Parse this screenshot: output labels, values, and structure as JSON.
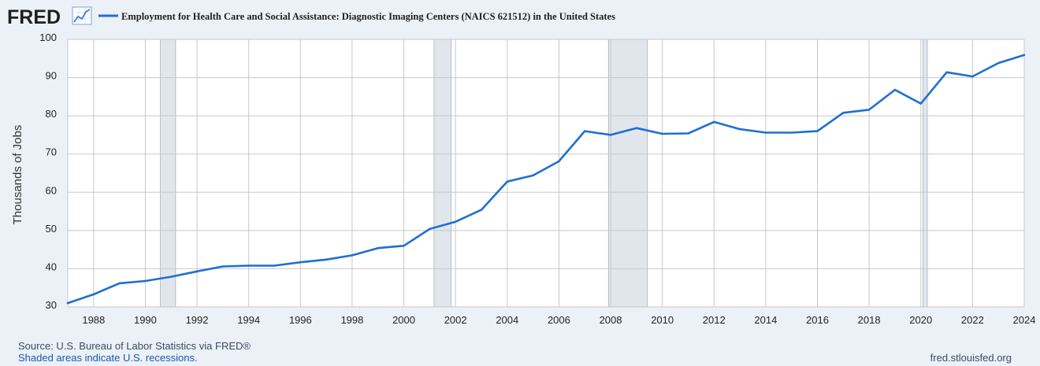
{
  "logo": {
    "text": "FRED",
    "icon": "fred-graph-icon"
  },
  "colors": {
    "background": "#ecf1f8",
    "plot_bg": "#ffffff",
    "grid": "#c8c8c8",
    "line": "#1f6fd1",
    "recession": "#e1e6ec",
    "recession_edge": "#b8bec6",
    "footer_source": "#3a4b63",
    "footer_link": "#1a56b0"
  },
  "footer": {
    "source": "Source: U.S. Bureau of Labor Statistics via FRED®",
    "shaded_note": "Shaded areas indicate U.S. recessions.",
    "site": "fred.stlouisfed.org"
  },
  "chart_data": {
    "type": "line",
    "title": "Employment for Health Care and Social Assistance: Diagnostic Imaging Centers (NAICS 621512) in the United States",
    "xlabel": "",
    "ylabel": "Thousands of Jobs",
    "xlim": [
      1987,
      2024
    ],
    "ylim": [
      30,
      100
    ],
    "yticks": [
      30,
      40,
      50,
      60,
      70,
      80,
      90,
      100
    ],
    "xticks": [
      1988,
      1990,
      1992,
      1994,
      1996,
      1998,
      2000,
      2002,
      2004,
      2006,
      2008,
      2010,
      2012,
      2014,
      2016,
      2018,
      2020,
      2022,
      2024
    ],
    "grid": true,
    "legend": "top-left",
    "recessions": [
      [
        1990.58,
        1991.17
      ],
      [
        2001.17,
        2001.83
      ],
      [
        2007.92,
        2009.42
      ],
      [
        2020.08,
        2020.25
      ]
    ],
    "series": [
      {
        "name": "Employment for Health Care and Social Assistance: Diagnostic Imaging Centers (NAICS 621512) in the United States",
        "x": [
          1987,
          1988,
          1989,
          1990,
          1991,
          1992,
          1993,
          1994,
          1995,
          1996,
          1997,
          1998,
          1999,
          2000,
          2001,
          2002,
          2003,
          2004,
          2005,
          2006,
          2007,
          2008,
          2009,
          2010,
          2011,
          2012,
          2013,
          2014,
          2015,
          2016,
          2017,
          2018,
          2019,
          2020,
          2021,
          2022,
          2023,
          2024
        ],
        "values": [
          31.0,
          33.3,
          36.2,
          36.8,
          37.9,
          39.3,
          40.6,
          40.8,
          40.8,
          41.7,
          42.4,
          43.5,
          45.4,
          46.0,
          50.4,
          52.3,
          55.4,
          62.8,
          64.4,
          68.1,
          76.0,
          75.0,
          76.8,
          75.3,
          75.4,
          78.4,
          76.5,
          75.6,
          75.6,
          76.0,
          80.8,
          81.6,
          86.8,
          83.2,
          91.4,
          90.3,
          93.8,
          95.9
        ]
      }
    ]
  }
}
